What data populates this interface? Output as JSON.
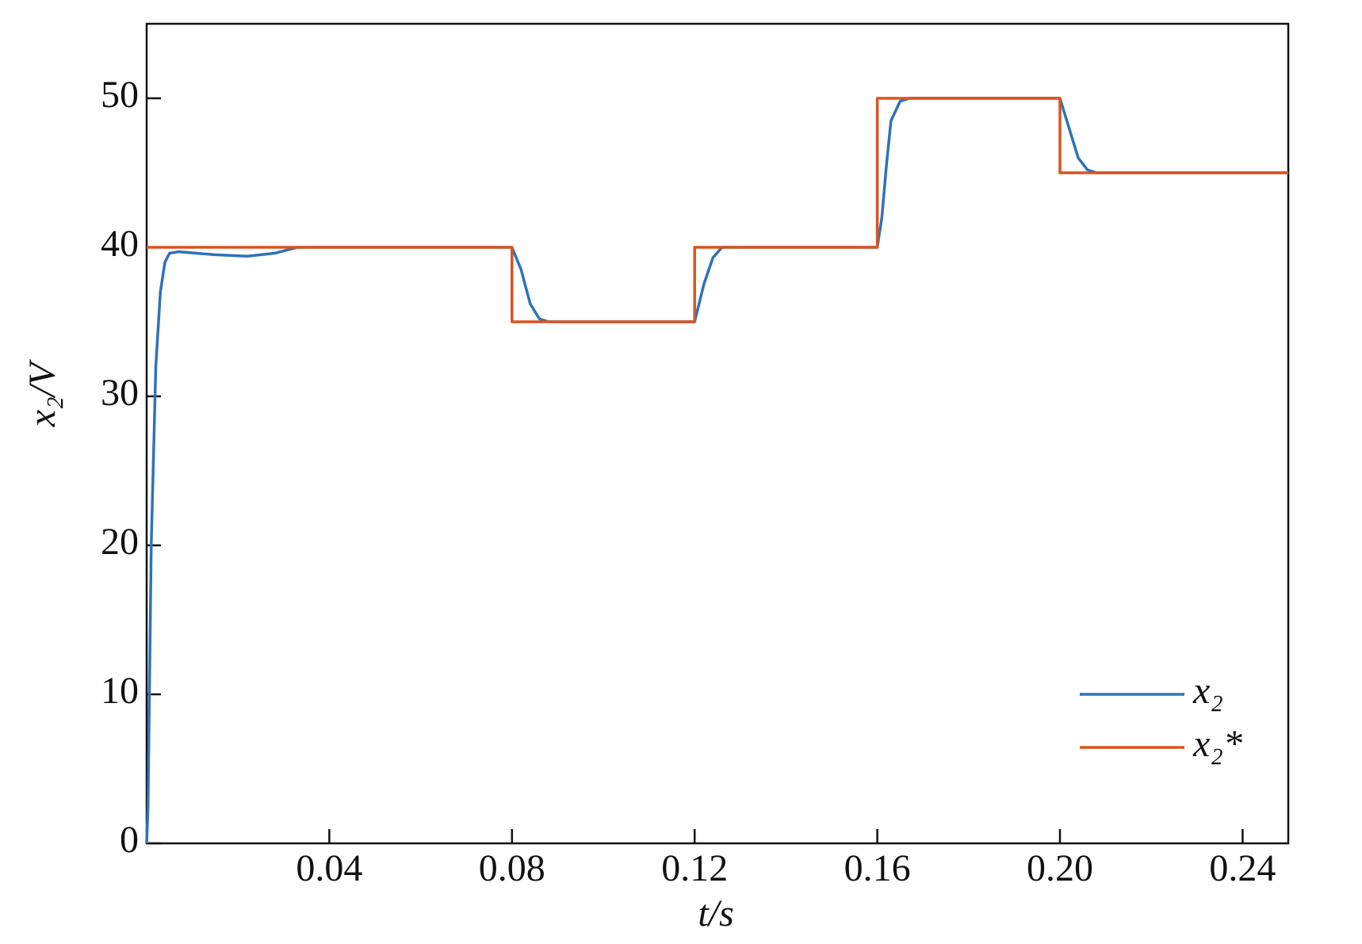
{
  "chart_data": {
    "type": "line",
    "x_label": "t/s",
    "y_label": "x₂/V",
    "xlim": [
      0,
      0.25
    ],
    "ylim": [
      0,
      55
    ],
    "xticks": [
      0.04,
      0.08,
      0.12,
      0.16,
      {
        "value": 0.2,
        "label": "0.20"
      },
      0.24
    ],
    "yticks": [
      0,
      10,
      20,
      30,
      40,
      50
    ],
    "legend": "lower right",
    "series": [
      {
        "name": "x₂",
        "color": "#2f72b8",
        "x": [
          0,
          0.0003,
          0.001,
          0.002,
          0.003,
          0.004,
          0.005,
          0.007,
          0.015,
          0.022,
          0.028,
          0.033,
          0.08,
          0.082,
          0.084,
          0.086,
          0.088,
          0.12,
          0.122,
          0.124,
          0.126,
          0.16,
          0.161,
          0.162,
          0.163,
          0.165,
          0.167,
          0.2,
          0.202,
          0.204,
          0.206,
          0.208,
          0.25
        ],
        "values": [
          0,
          2.5,
          20,
          32,
          37,
          39,
          39.6,
          39.7,
          39.5,
          39.4,
          39.6,
          40,
          40,
          38.5,
          36.2,
          35.2,
          35,
          35,
          37.5,
          39.3,
          40,
          40,
          42,
          45.5,
          48.5,
          49.8,
          50,
          50,
          48,
          46,
          45.2,
          45,
          45
        ]
      },
      {
        "name": "x₂*",
        "color": "#d9541e",
        "x": [
          0,
          0.08,
          0.08,
          0.12,
          0.12,
          0.16,
          0.16,
          0.2,
          0.2,
          0.25
        ],
        "values": [
          40,
          40,
          35,
          35,
          40,
          40,
          50,
          50,
          45,
          45
        ]
      }
    ]
  }
}
